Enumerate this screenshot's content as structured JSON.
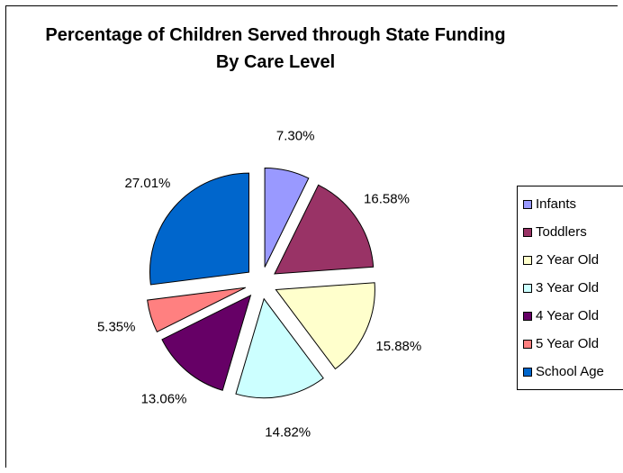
{
  "chart_data": {
    "type": "pie",
    "title": "Percentage of Children Served through State Funding By Care Level",
    "categories": [
      "Infants",
      "Toddlers",
      "2 Year Old",
      "3 Year Old",
      "4 Year Old",
      "5 Year Old",
      "School Age"
    ],
    "values": [
      7.3,
      16.58,
      15.88,
      14.82,
      13.06,
      5.35,
      27.01
    ],
    "labels": [
      "7.30%",
      "16.58%",
      "15.88%",
      "14.82%",
      "13.06%",
      "5.35%",
      "27.01%"
    ],
    "colors": [
      "#9999ff",
      "#993366",
      "#ffffcc",
      "#ccffff",
      "#660066",
      "#ff8080",
      "#0066cc"
    ],
    "exploded": true,
    "legend_position": "right"
  }
}
